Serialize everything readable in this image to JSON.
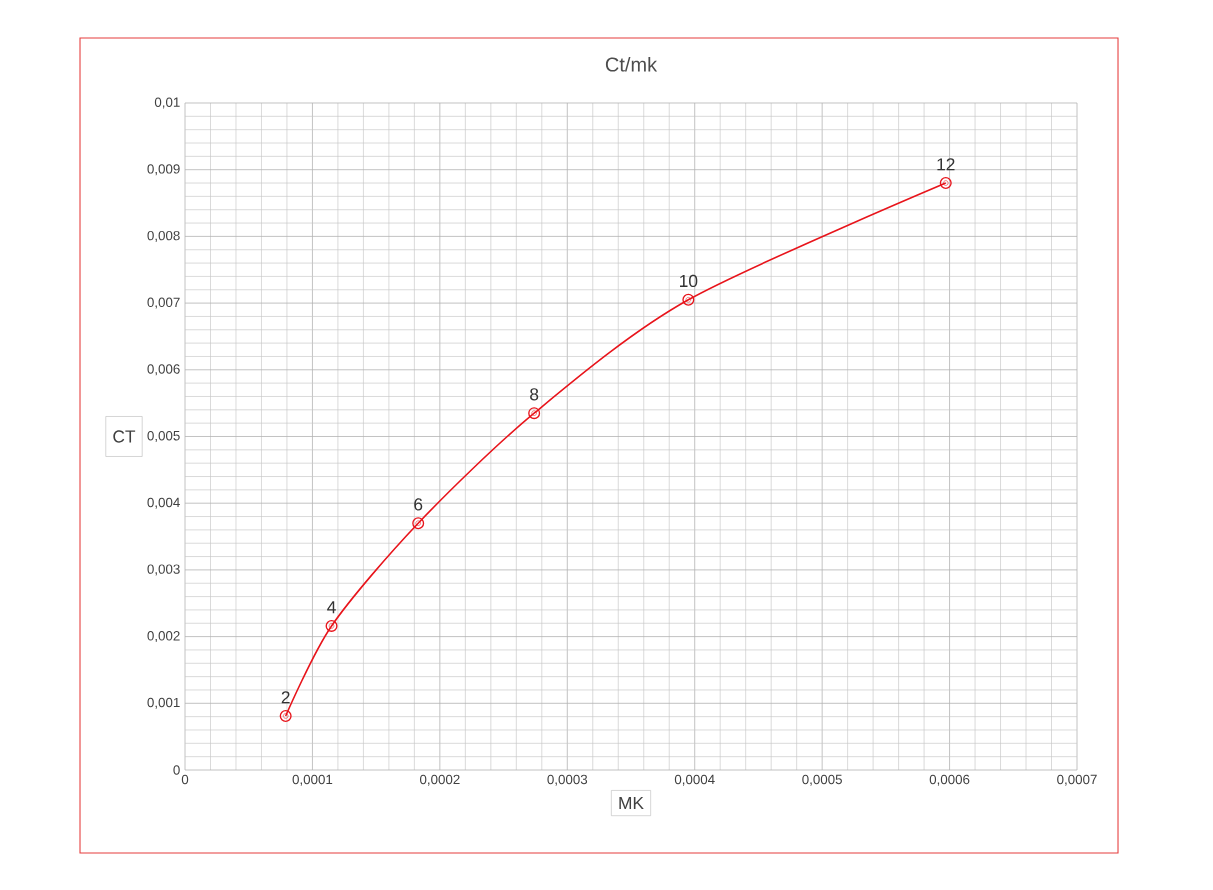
{
  "chart_data": {
    "type": "line",
    "title": "Ct/mk",
    "xlabel": "MK",
    "ylabel": "CT",
    "x": [
      7.9e-05,
      0.000115,
      0.000183,
      0.000274,
      0.000395,
      0.000597
    ],
    "series": [
      {
        "color": "#e8141b",
        "values": [
          0.00081,
          0.00216,
          0.0037,
          0.00535,
          0.00705,
          0.0088
        ]
      }
    ],
    "xlim": [
      0,
      0.0007
    ],
    "ylim": [
      0,
      0.01
    ],
    "xticks": [
      {
        "value": 0,
        "label": "0"
      },
      {
        "value": 0.0001,
        "label": "0,0001"
      },
      {
        "value": 0.0002,
        "label": "0,0002"
      },
      {
        "value": 0.0003,
        "label": "0,0003"
      },
      {
        "value": 0.0004,
        "label": "0,0004"
      },
      {
        "value": 0.0005,
        "label": "0,0005"
      },
      {
        "value": 0.0006,
        "label": "0,0006"
      },
      {
        "value": 0.0007,
        "label": "0,0007"
      }
    ],
    "yticks": [
      {
        "value": 0,
        "label": "0"
      },
      {
        "value": 0.001,
        "label": "0,001"
      },
      {
        "value": 0.002,
        "label": "0,002"
      },
      {
        "value": 0.003,
        "label": "0,003"
      },
      {
        "value": 0.004,
        "label": "0,004"
      },
      {
        "value": 0.005,
        "label": "0,005"
      },
      {
        "value": 0.006,
        "label": "0,006"
      },
      {
        "value": 0.007,
        "label": "0,007"
      },
      {
        "value": 0.008,
        "label": "0,008"
      },
      {
        "value": 0.009,
        "label": "0,009"
      },
      {
        "value": 0.01,
        "label": "0,01"
      }
    ],
    "annotations": [
      {
        "text": "2",
        "x": 7.9e-05,
        "y": 0.00081
      },
      {
        "text": "4",
        "x": 0.000115,
        "y": 0.00216
      },
      {
        "text": "6",
        "x": 0.000183,
        "y": 0.0037
      },
      {
        "text": "8",
        "x": 0.000274,
        "y": 0.00535
      },
      {
        "text": "10",
        "x": 0.000395,
        "y": 0.00705
      },
      {
        "text": "12",
        "x": 0.000597,
        "y": 0.0088
      }
    ],
    "grid": true,
    "marker": "circle",
    "line_style": "solid"
  }
}
